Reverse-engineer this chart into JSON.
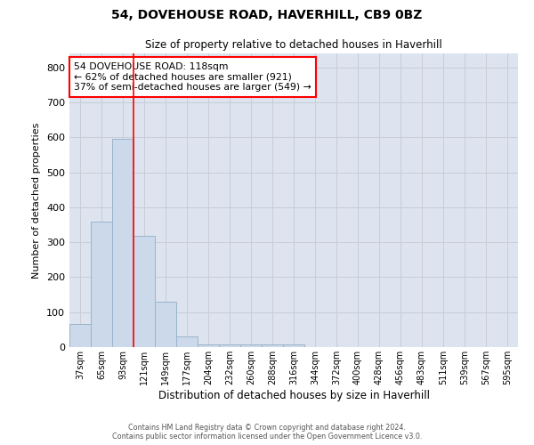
{
  "title": "54, DOVEHOUSE ROAD, HAVERHILL, CB9 0BZ",
  "subtitle": "Size of property relative to detached houses in Haverhill",
  "xlabel": "Distribution of detached houses by size in Haverhill",
  "ylabel": "Number of detached properties",
  "bar_labels": [
    "37sqm",
    "65sqm",
    "93sqm",
    "121sqm",
    "149sqm",
    "177sqm",
    "204sqm",
    "232sqm",
    "260sqm",
    "288sqm",
    "316sqm",
    "344sqm",
    "372sqm",
    "400sqm",
    "428sqm",
    "456sqm",
    "483sqm",
    "511sqm",
    "539sqm",
    "567sqm",
    "595sqm"
  ],
  "bar_values": [
    65,
    358,
    595,
    317,
    130,
    30,
    8,
    8,
    8,
    8,
    8,
    0,
    0,
    0,
    0,
    0,
    0,
    0,
    0,
    0,
    0
  ],
  "bar_color": "#ccd9ea",
  "bar_edgecolor": "#9ab3cc",
  "grid_color": "#c8cdd6",
  "background_color": "#dde4ef",
  "property_line_x": 3.0,
  "annotation_line1": "54 DOVEHOUSE ROAD: 118sqm",
  "annotation_line2": "← 62% of detached houses are smaller (921)",
  "annotation_line3": "37% of semi-detached houses are larger (549) →",
  "ylim": [
    0,
    840
  ],
  "yticks": [
    0,
    100,
    200,
    300,
    400,
    500,
    600,
    700,
    800
  ],
  "footer_line1": "Contains HM Land Registry data © Crown copyright and database right 2024.",
  "footer_line2": "Contains public sector information licensed under the Open Government Licence v3.0."
}
